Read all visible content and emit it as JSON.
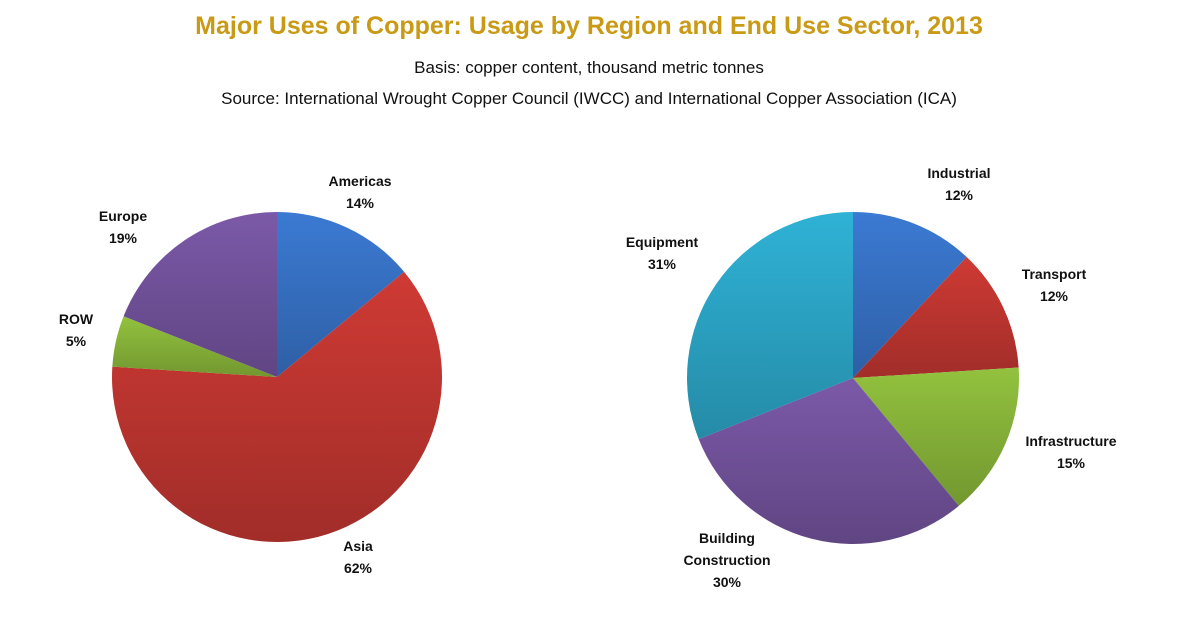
{
  "header": {
    "title": "Major Uses of Copper: Usage by Region and End Use Sector, 2013",
    "subtitle": "Basis: copper content, thousand metric tonnes",
    "source": "Source: International Wrought Copper Council (IWCC) and International Copper Association (ICA)"
  },
  "chart_data": [
    {
      "type": "pie",
      "title": "",
      "slices": [
        {
          "label": "Americas",
          "percent_label": "14%",
          "value": 14,
          "color": "#3b7ad3"
        },
        {
          "label": "Asia",
          "percent_label": "62%",
          "value": 62,
          "color": "#cf3a34"
        },
        {
          "label": "ROW",
          "percent_label": "5%",
          "value": 5,
          "color": "#92c23e"
        },
        {
          "label": "Europe",
          "percent_label": "19%",
          "value": 19,
          "color": "#7b59a8"
        }
      ]
    },
    {
      "type": "pie",
      "title": "",
      "slices": [
        {
          "label": "Industrial",
          "percent_label": "12%",
          "value": 12,
          "color": "#3b7ad3"
        },
        {
          "label": "Transport",
          "percent_label": "12%",
          "value": 12,
          "color": "#cf3a34"
        },
        {
          "label": "Infrastructure",
          "percent_label": "15%",
          "value": 15,
          "color": "#92c23e"
        },
        {
          "label": "Building Construction",
          "percent_label": "30%",
          "value": 30,
          "color": "#7b59a8"
        },
        {
          "label": "Equipment",
          "percent_label": "31%",
          "value": 31,
          "color": "#2fb2d6"
        }
      ]
    }
  ]
}
